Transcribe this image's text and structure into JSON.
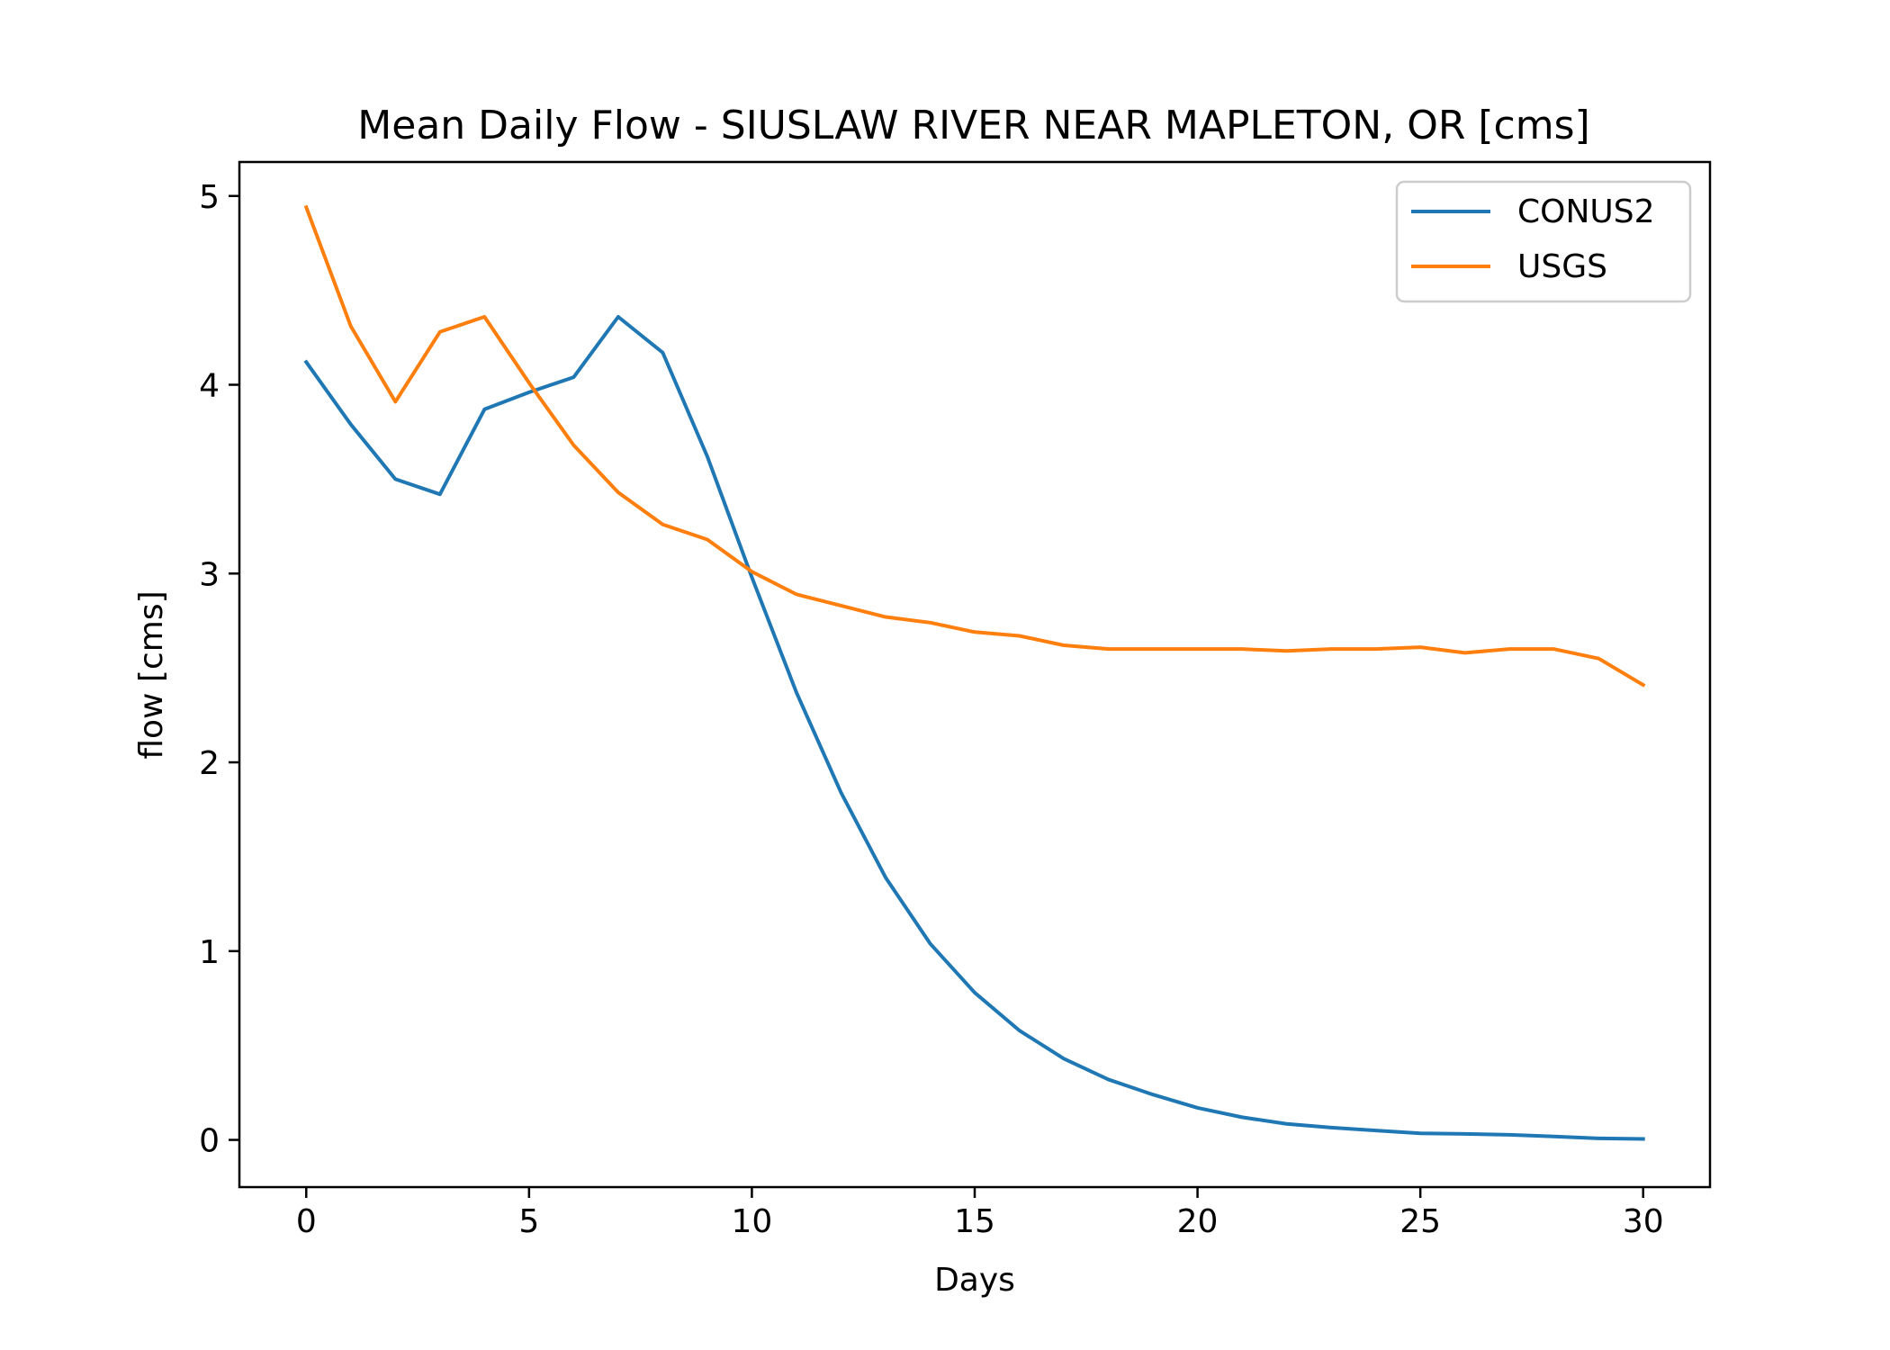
{
  "chart_data": {
    "type": "line",
    "title": "Mean Daily Flow - SIUSLAW RIVER NEAR MAPLETON, OR [cms]",
    "xlabel": "Days",
    "ylabel": "flow [cms]",
    "xlim": [
      -1.5,
      31.5
    ],
    "ylim": [
      -0.25,
      5.18
    ],
    "xticks": [
      0,
      5,
      10,
      15,
      20,
      25,
      30
    ],
    "yticks": [
      0,
      1,
      2,
      3,
      4,
      5
    ],
    "grid": false,
    "legend_position": "top-right",
    "x": [
      0,
      1,
      2,
      3,
      4,
      5,
      6,
      7,
      8,
      9,
      10,
      11,
      12,
      13,
      14,
      15,
      16,
      17,
      18,
      19,
      20,
      21,
      22,
      23,
      24,
      25,
      26,
      27,
      28,
      29,
      30
    ],
    "series": [
      {
        "name": "CONUS2",
        "color": "#1f77b4",
        "values": [
          4.12,
          3.79,
          3.5,
          3.42,
          3.87,
          3.96,
          4.04,
          4.36,
          4.17,
          3.62,
          2.98,
          2.37,
          1.84,
          1.39,
          1.04,
          0.78,
          0.58,
          0.43,
          0.32,
          0.24,
          0.17,
          0.12,
          0.085,
          0.065,
          0.05,
          0.035,
          0.032,
          0.027,
          0.018,
          0.008,
          0.005
        ]
      },
      {
        "name": "USGS",
        "color": "#ff7f0e",
        "values": [
          4.94,
          4.31,
          3.91,
          4.28,
          4.36,
          4.01,
          3.68,
          3.43,
          3.26,
          3.18,
          3.01,
          2.89,
          2.83,
          2.77,
          2.74,
          2.69,
          2.67,
          2.62,
          2.6,
          2.6,
          2.6,
          2.6,
          2.59,
          2.6,
          2.6,
          2.61,
          2.58,
          2.6,
          2.6,
          2.55,
          2.41
        ]
      }
    ]
  }
}
